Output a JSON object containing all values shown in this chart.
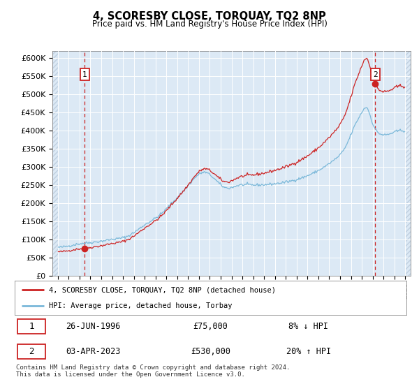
{
  "title": "4, SCORESBY CLOSE, TORQUAY, TQ2 8NP",
  "subtitle": "Price paid vs. HM Land Registry's House Price Index (HPI)",
  "legend_line1": "4, SCORESBY CLOSE, TORQUAY, TQ2 8NP (detached house)",
  "legend_line2": "HPI: Average price, detached house, Torbay",
  "annotation1_label": "1",
  "annotation1_date": "26-JUN-1996",
  "annotation1_price": "£75,000",
  "annotation1_hpi": "8% ↓ HPI",
  "annotation2_label": "2",
  "annotation2_date": "03-APR-2023",
  "annotation2_price": "£530,000",
  "annotation2_hpi": "20% ↑ HPI",
  "footer": "Contains HM Land Registry data © Crown copyright and database right 2024.\nThis data is licensed under the Open Government Licence v3.0.",
  "hpi_color": "#7ab8d9",
  "price_color": "#cc2222",
  "sale1_x": 1996.49,
  "sale1_y": 75000,
  "sale2_x": 2023.25,
  "sale2_y": 530000,
  "ylim": [
    0,
    620000
  ],
  "xlim": [
    1993.5,
    2026.5
  ],
  "data_xmin": 1994.0,
  "data_xmax": 2026.0,
  "background_color": "#dce9f5",
  "hatch_color": "#c0d0e0"
}
